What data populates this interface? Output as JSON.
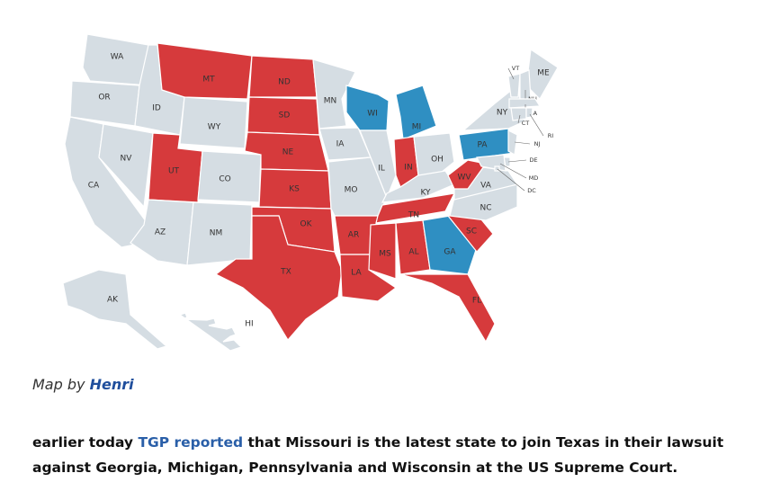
{
  "map": {
    "states": [
      {
        "label": "WA",
        "color": "#d5dde3"
      },
      {
        "label": "OR",
        "color": "#d5dde3"
      },
      {
        "label": "CA",
        "color": "#d5dde3"
      },
      {
        "label": "NV",
        "color": "#d5dde3"
      },
      {
        "label": "ID",
        "color": "#d5dde3"
      },
      {
        "label": "MT",
        "color": "#d63a3c"
      },
      {
        "label": "WY",
        "color": "#d5dde3"
      },
      {
        "label": "UT",
        "color": "#d63a3c"
      },
      {
        "label": "CO",
        "color": "#d5dde3"
      },
      {
        "label": "AZ",
        "color": "#d5dde3"
      },
      {
        "label": "NM",
        "color": "#d5dde3"
      },
      {
        "label": "ND",
        "color": "#d63a3c"
      },
      {
        "label": "SD",
        "color": "#d63a3c"
      },
      {
        "label": "NE",
        "color": "#d63a3c"
      },
      {
        "label": "KS",
        "color": "#d63a3c"
      },
      {
        "label": "OK",
        "color": "#d63a3c"
      },
      {
        "label": "TX",
        "color": "#d63a3c"
      },
      {
        "label": "MN",
        "color": "#d5dde3"
      },
      {
        "label": "IA",
        "color": "#d5dde3"
      },
      {
        "label": "MO",
        "color": "#d5dde3"
      },
      {
        "label": "AR",
        "color": "#d63a3c"
      },
      {
        "label": "LA",
        "color": "#d63a3c"
      },
      {
        "label": "WI",
        "color": "#2f8fc2"
      },
      {
        "label": "IL",
        "color": "#d5dde3"
      },
      {
        "label": "MI",
        "color": "#2f8fc2"
      },
      {
        "label": "IN",
        "color": "#d63a3c"
      },
      {
        "label": "OH",
        "color": "#d5dde3"
      },
      {
        "label": "KY",
        "color": "#d5dde3"
      },
      {
        "label": "TN",
        "color": "#d63a3c"
      },
      {
        "label": "MS",
        "color": "#d63a3c"
      },
      {
        "label": "AL",
        "color": "#d63a3c"
      },
      {
        "label": "GA",
        "color": "#2f8fc2"
      },
      {
        "label": "FL",
        "color": "#d63a3c"
      },
      {
        "label": "SC",
        "color": "#d63a3c"
      },
      {
        "label": "NC",
        "color": "#d5dde3"
      },
      {
        "label": "VA",
        "color": "#d5dde3"
      },
      {
        "label": "WV",
        "color": "#d63a3c"
      },
      {
        "label": "PA",
        "color": "#2f8fc2"
      },
      {
        "label": "NY",
        "color": "#d5dde3"
      },
      {
        "label": "ME",
        "color": "#d5dde3"
      },
      {
        "label": "VT",
        "color": "#d5dde3"
      },
      {
        "label": "NH",
        "color": "#d5dde3"
      },
      {
        "label": "MA",
        "color": "#d5dde3"
      },
      {
        "label": "CT",
        "color": "#d5dde3"
      },
      {
        "label": "RI",
        "color": "#d5dde3"
      },
      {
        "label": "NJ",
        "color": "#d5dde3"
      },
      {
        "label": "DE",
        "color": "#d5dde3"
      },
      {
        "label": "MD",
        "color": "#d5dde3"
      },
      {
        "label": "DC",
        "color": "#d5dde3"
      },
      {
        "label": "AK",
        "color": "#d5dde3"
      },
      {
        "label": "HI",
        "color": "#d5dde3"
      }
    ]
  },
  "caption": {
    "prefix": "Map by",
    "author": "Henri"
  },
  "paragraph": {
    "start": "earlier today",
    "link": "TGP reported",
    "rest": "that Missouri is the latest state to join Texas in their lawsuit against Georgia, Michigan, Pennsylvania and Wisconsin at the US Supreme Court."
  }
}
